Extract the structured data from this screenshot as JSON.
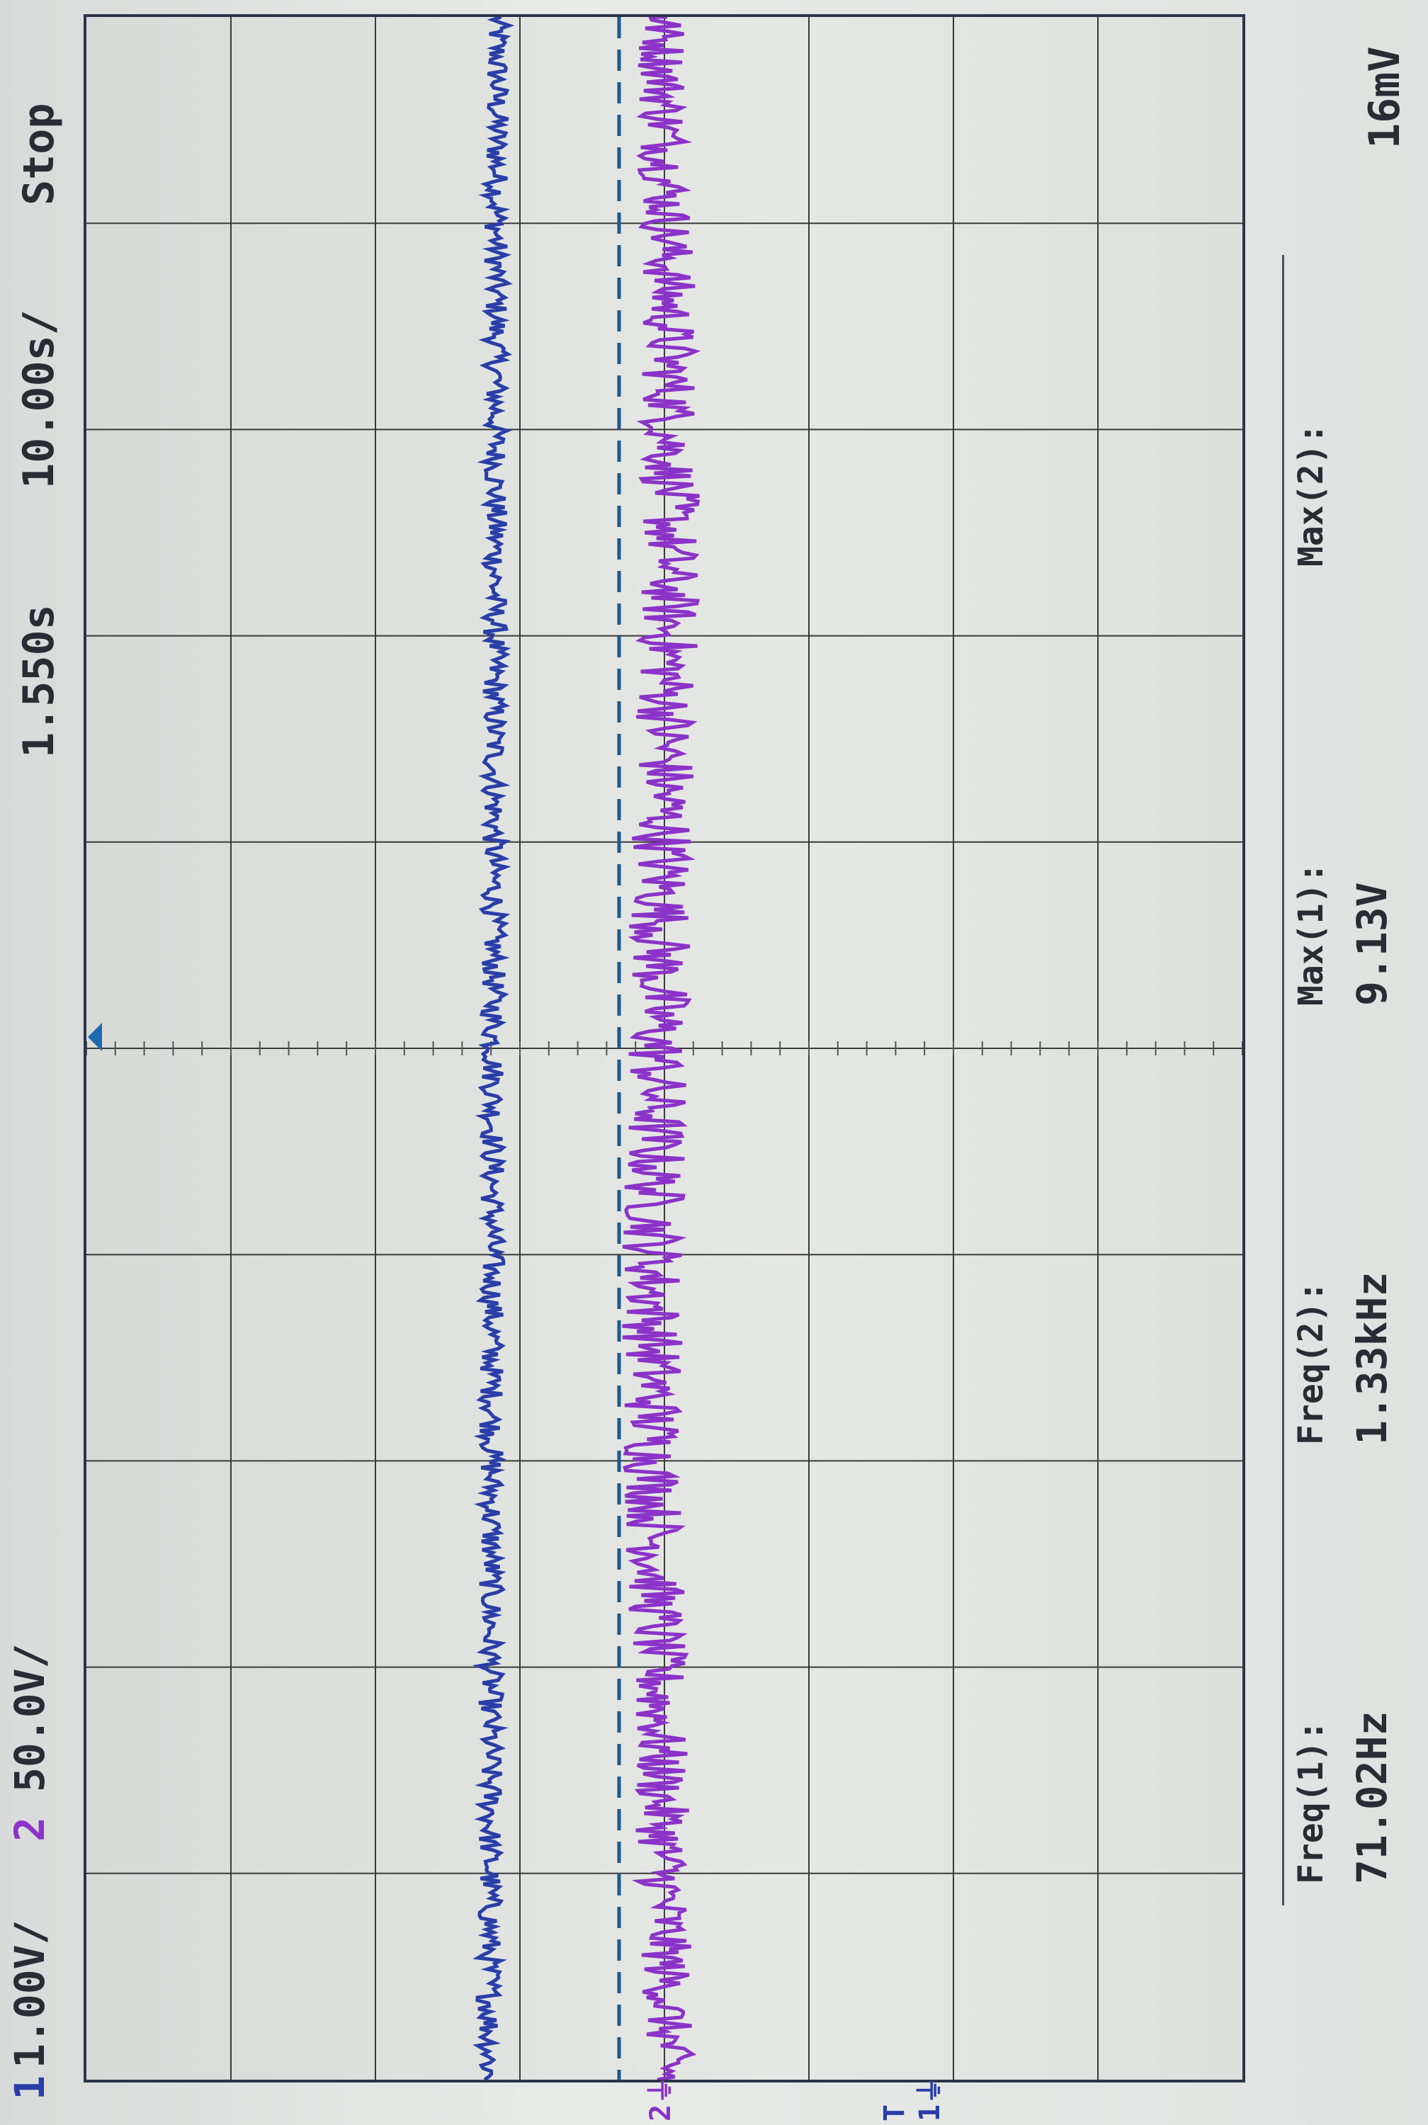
{
  "status_bar": {
    "ch1_number": "1",
    "ch1_scale": "1.00V/",
    "ch2_number": "2",
    "ch2_scale": "50.0V/",
    "time_position": "1.550s",
    "time_scale": "10.00s/",
    "run_state": "Stop",
    "last_value": "16mV"
  },
  "measurements": [
    {
      "label": "Freq(1):",
      "value": "71.02Hz"
    },
    {
      "label": "Freq(2):",
      "value": "1.33kHz"
    },
    {
      "label": "Max(1):",
      "value": "9.13V"
    },
    {
      "label": "Max(2):",
      "value": ""
    }
  ],
  "markers": {
    "ch1_ground": "1",
    "ch2_ground": "2",
    "trigger": "T"
  },
  "colors": {
    "ch1": "#2a3ea8",
    "ch2": "#8b33c8",
    "grid": "#3a3a3a",
    "trigger_line": "#1c5a8a"
  },
  "icons": [
    "trigger-level-arrow-icon",
    "ground-marker-icon"
  ]
}
